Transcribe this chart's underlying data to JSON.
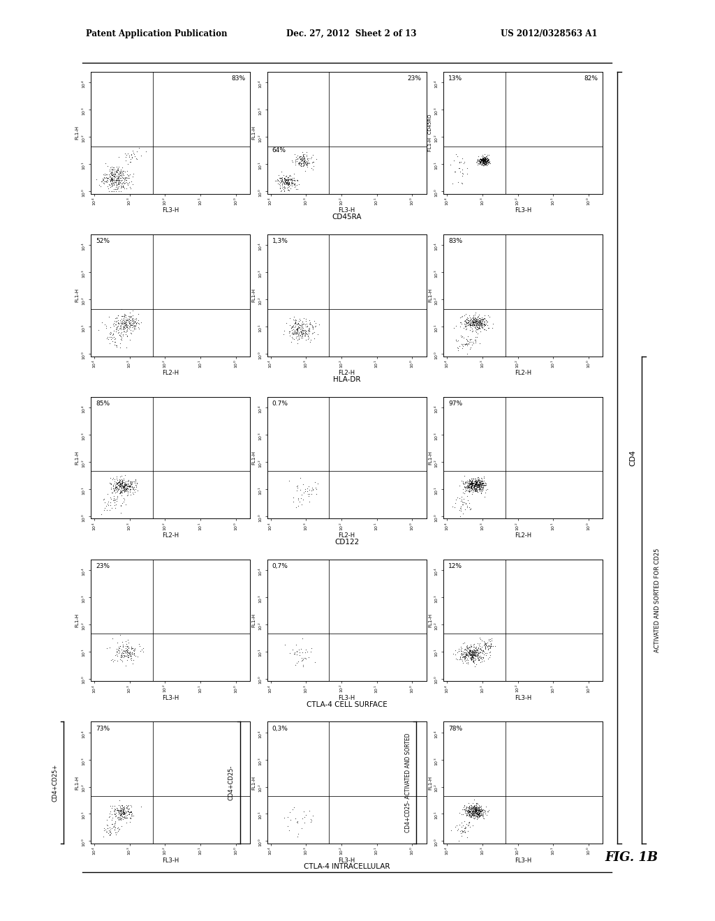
{
  "title_left": "Patent Application Publication",
  "title_center": "Dec. 27, 2012  Sheet 2 of 13",
  "title_right": "US 2012/0328563 A1",
  "fig_label": "FIG. 1B",
  "rows": 5,
  "cols": 3,
  "panels": [
    {
      "row": 0,
      "col": 0,
      "pct_ul": "",
      "pct_ur": "83%",
      "pct_ll": "",
      "pct_lr": "",
      "xlabel": "FL3-H",
      "ylabel": "FL1-H",
      "cluster": "lr"
    },
    {
      "row": 0,
      "col": 1,
      "pct_ul": "",
      "pct_ur": "23%",
      "pct_ll": "64%",
      "pct_lr": "",
      "xlabel": "FL3-H",
      "ylabel": "FL1-H",
      "cluster": "ll_and_ur"
    },
    {
      "row": 0,
      "col": 2,
      "pct_ul": "13%",
      "pct_ur": "82%",
      "pct_ll": "",
      "pct_lr": "",
      "xlabel": "FL3-H",
      "ylabel": "FL1-H  CD45RO",
      "cluster": "ur_tight"
    },
    {
      "row": 1,
      "col": 0,
      "pct_ul": "52%",
      "pct_ur": "",
      "pct_ll": "",
      "pct_lr": "",
      "xlabel": "FL2-H",
      "ylabel": "FL1-H",
      "cluster": "ul_scatter"
    },
    {
      "row": 1,
      "col": 1,
      "pct_ul": "1,3%",
      "pct_ur": "",
      "pct_ll": "",
      "pct_lr": "",
      "xlabel": "FL2-H",
      "ylabel": "FL1-H",
      "cluster": "center_mid"
    },
    {
      "row": 1,
      "col": 2,
      "pct_ul": "83%",
      "pct_ur": "",
      "pct_ll": "",
      "pct_lr": "",
      "xlabel": "FL2-H",
      "ylabel": "FL1-H",
      "cluster": "ul_dense"
    },
    {
      "row": 2,
      "col": 0,
      "pct_ul": "85%",
      "pct_ur": "",
      "pct_ll": "",
      "pct_lr": "",
      "xlabel": "FL2-H",
      "ylabel": "FL1-H",
      "cluster": "ul_dense2"
    },
    {
      "row": 2,
      "col": 1,
      "pct_ul": "0.7%",
      "pct_ur": "",
      "pct_ll": "",
      "pct_lr": "",
      "xlabel": "FL2-H",
      "ylabel": "FL1-H",
      "cluster": "center_sparse"
    },
    {
      "row": 2,
      "col": 2,
      "pct_ul": "97%",
      "pct_ur": "",
      "pct_ll": "",
      "pct_lr": "",
      "xlabel": "FL2-H",
      "ylabel": "FL1-H",
      "cluster": "ul_very_dense"
    },
    {
      "row": 3,
      "col": 0,
      "pct_ul": "23%",
      "pct_ur": "",
      "pct_ll": "",
      "pct_lr": "",
      "xlabel": "FL3-H",
      "ylabel": "FL1-H",
      "cluster": "center_mid2"
    },
    {
      "row": 3,
      "col": 1,
      "pct_ul": "0,7%",
      "pct_ur": "",
      "pct_ll": "",
      "pct_lr": "",
      "xlabel": "FL3-H",
      "ylabel": "FL1-H",
      "cluster": "center_sparse2"
    },
    {
      "row": 3,
      "col": 2,
      "pct_ul": "12%",
      "pct_ur": "",
      "pct_ll": "",
      "pct_lr": "",
      "xlabel": "FL3-H",
      "ylabel": "FL1-H",
      "cluster": "lr_dense"
    },
    {
      "row": 4,
      "col": 0,
      "pct_ul": "73%",
      "pct_ur": "",
      "pct_ll": "",
      "pct_lr": "",
      "xlabel": "FL3-H",
      "ylabel": "FL1-H",
      "cluster": "ul_mid"
    },
    {
      "row": 4,
      "col": 1,
      "pct_ul": "0,3%",
      "pct_ur": "",
      "pct_ll": "",
      "pct_lr": "",
      "xlabel": "FL3-H",
      "ylabel": "FL1-H",
      "cluster": "very_sparse"
    },
    {
      "row": 4,
      "col": 2,
      "pct_ul": "78%",
      "pct_ur": "",
      "pct_ll": "",
      "pct_lr": "",
      "xlabel": "FL3-H",
      "ylabel": "FL1-H",
      "cluster": "ul_dense3"
    }
  ],
  "row_bottom_labels": [
    "CD45RA",
    "HLA-DR",
    "CD122",
    "CTLA-4 CELL SURFACE",
    "CTLA-4 INTRACELLULAR"
  ],
  "right_label_cd4": "CD4",
  "right_label_activated": "ACTIVATED AND SORTED FOR CD25",
  "left_label_row4_col0": "CD4+CD25+",
  "left_label_row4_col1": "CD4+CD25-",
  "left_label_row4_col2": "CD4+CD25- ACTIVATED AND SORTED"
}
